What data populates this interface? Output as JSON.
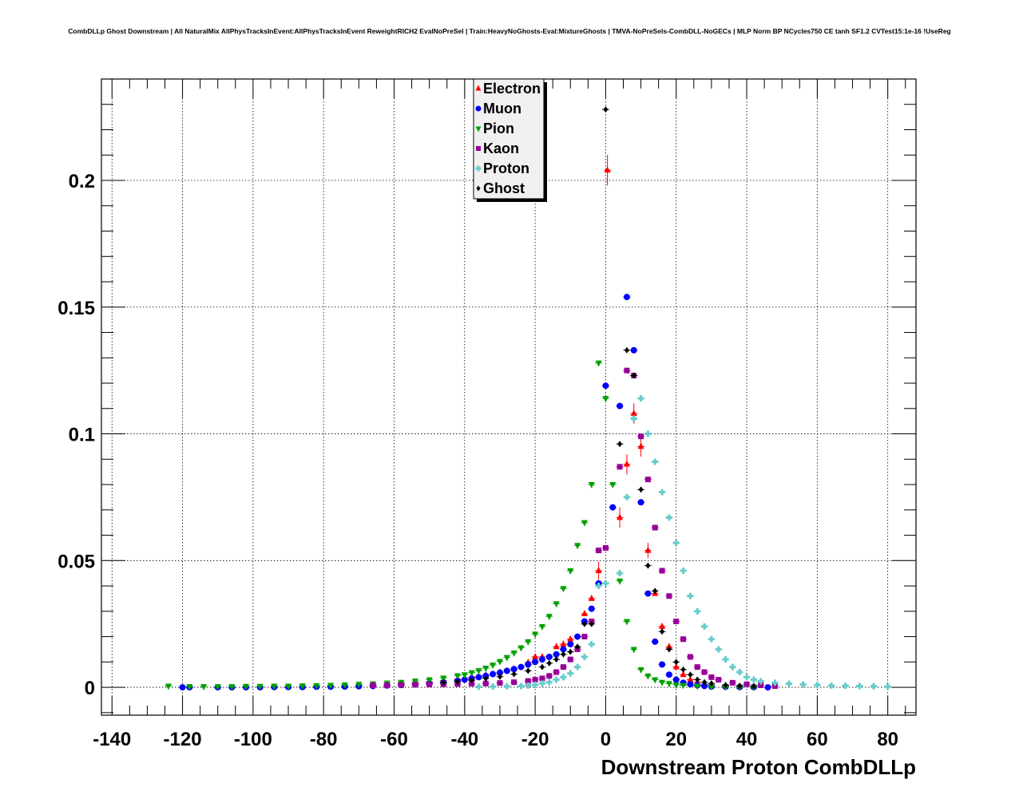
{
  "chart_data": {
    "type": "scatter",
    "title": "CombDLLp Ghost Downstream | All NaturalMix AllPhysTracksInEvent:AllPhysTracksInEvent ReweightRICH2 EvalNoPreSel | Train:HeavyNoGhosts-Eval:MixtureGhosts | TMVA-NoPreSels-CombDLL-NoGECs | MLP Norm BP NCycles750 CE tanh SF1.2 CVTest15:1e-16 !UseReg",
    "xlabel": "Downstream Proton CombDLLp",
    "ylabel": "",
    "xlim": [
      -143,
      88
    ],
    "ylim": [
      -0.011,
      0.24
    ],
    "xticks": [
      -140,
      -120,
      -100,
      -80,
      -60,
      -40,
      -20,
      0,
      20,
      40,
      60,
      80
    ],
    "xtick_labels": [
      "-140",
      "-120",
      "-100",
      "-80",
      "-60",
      "-40",
      "-20",
      "0",
      "20",
      "40",
      "60",
      "80"
    ],
    "yticks": [
      0,
      0.05,
      0.1,
      0.15,
      0.2
    ],
    "ytick_labels": [
      "0",
      "0.05",
      "0.1",
      "0.15",
      "0.2"
    ],
    "grid": true,
    "legend_position": "top-center",
    "series": [
      {
        "name": "Electron",
        "color": "#ff0000",
        "marker": "triangle-up",
        "points": [
          [
            -58,
            0.0015
          ],
          [
            -54,
            0.0018
          ],
          [
            -50,
            0.0021
          ],
          [
            -46,
            0.0026
          ],
          [
            -42,
            0.0032
          ],
          [
            -38,
            0.004
          ],
          [
            -34,
            0.0048
          ],
          [
            -30,
            0.0058
          ],
          [
            -26,
            0.0072
          ],
          [
            -22,
            0.0098
          ],
          [
            -20,
            0.012
          ],
          [
            -18,
            0.012
          ],
          [
            -14,
            0.016
          ],
          [
            -12,
            0.017
          ],
          [
            -10,
            0.019
          ],
          [
            -6,
            0.029
          ],
          [
            -4,
            0.035
          ],
          [
            -2,
            0.046
          ],
          [
            0.5,
            0.204
          ],
          [
            4,
            0.067
          ],
          [
            6,
            0.088
          ],
          [
            8,
            0.108
          ],
          [
            10,
            0.095
          ],
          [
            12,
            0.054
          ],
          [
            14,
            0.037
          ],
          [
            16,
            0.024
          ],
          [
            18,
            0.016
          ],
          [
            20,
            0.008
          ],
          [
            22,
            0.005
          ],
          [
            24,
            0.003
          ],
          [
            26,
            0.002
          ],
          [
            28,
            0.0012
          ],
          [
            30,
            0.0008
          ],
          [
            34,
            0.0005
          ],
          [
            38,
            0.0003
          ],
          [
            42,
            0.0002
          ]
        ],
        "errors": [
          [
            -2,
            0.0035
          ],
          [
            0.5,
            0.006
          ],
          [
            4,
            0.004
          ],
          [
            6,
            0.004
          ],
          [
            8,
            0.004
          ],
          [
            10,
            0.004
          ],
          [
            12,
            0.003
          ]
        ]
      },
      {
        "name": "Muon",
        "color": "#0000ff",
        "marker": "circle",
        "points": [
          [
            -120,
            0.0
          ],
          [
            -118,
            0.0
          ],
          [
            -110,
            0.0
          ],
          [
            -106,
            0.0
          ],
          [
            -102,
            0.0
          ],
          [
            -98,
            0.0
          ],
          [
            -94,
            0.0001
          ],
          [
            -90,
            0.0001
          ],
          [
            -86,
            0.0001
          ],
          [
            -82,
            0.0002
          ],
          [
            -78,
            0.0002
          ],
          [
            -74,
            0.0003
          ],
          [
            -70,
            0.0004
          ],
          [
            -66,
            0.0005
          ],
          [
            -62,
            0.0007
          ],
          [
            -58,
            0.0009
          ],
          [
            -54,
            0.0012
          ],
          [
            -50,
            0.0016
          ],
          [
            -46,
            0.002
          ],
          [
            -42,
            0.0026
          ],
          [
            -40,
            0.003
          ],
          [
            -38,
            0.0035
          ],
          [
            -36,
            0.004
          ],
          [
            -34,
            0.0045
          ],
          [
            -32,
            0.0052
          ],
          [
            -30,
            0.0058
          ],
          [
            -28,
            0.0065
          ],
          [
            -26,
            0.0072
          ],
          [
            -24,
            0.008
          ],
          [
            -22,
            0.009
          ],
          [
            -20,
            0.01
          ],
          [
            -18,
            0.011
          ],
          [
            -16,
            0.012
          ],
          [
            -14,
            0.013
          ],
          [
            -12,
            0.015
          ],
          [
            -10,
            0.017
          ],
          [
            -8,
            0.02
          ],
          [
            -6,
            0.026
          ],
          [
            -4,
            0.031
          ],
          [
            -2,
            0.041
          ],
          [
            0,
            0.119
          ],
          [
            2,
            0.071
          ],
          [
            4,
            0.111
          ],
          [
            6,
            0.154
          ],
          [
            8,
            0.133
          ],
          [
            10,
            0.073
          ],
          [
            12,
            0.037
          ],
          [
            14,
            0.018
          ],
          [
            16,
            0.009
          ],
          [
            18,
            0.005
          ],
          [
            20,
            0.003
          ],
          [
            22,
            0.0018
          ],
          [
            24,
            0.0012
          ],
          [
            26,
            0.0008
          ],
          [
            28,
            0.0005
          ],
          [
            30,
            0.0003
          ],
          [
            34,
            0.0002
          ],
          [
            38,
            0.0001
          ],
          [
            42,
            0.0001
          ],
          [
            46,
            0.0
          ]
        ]
      },
      {
        "name": "Pion",
        "color": "#00a000",
        "marker": "triangle-down",
        "points": [
          [
            -124,
            0.0005
          ],
          [
            -118,
            0.0003
          ],
          [
            -114,
            0.0003
          ],
          [
            -110,
            0.0003
          ],
          [
            -106,
            0.0003
          ],
          [
            -102,
            0.0004
          ],
          [
            -98,
            0.0004
          ],
          [
            -94,
            0.0005
          ],
          [
            -90,
            0.0005
          ],
          [
            -86,
            0.0006
          ],
          [
            -82,
            0.0007
          ],
          [
            -78,
            0.0008
          ],
          [
            -74,
            0.001
          ],
          [
            -70,
            0.0012
          ],
          [
            -66,
            0.0014
          ],
          [
            -62,
            0.0017
          ],
          [
            -58,
            0.002
          ],
          [
            -54,
            0.0025
          ],
          [
            -50,
            0.003
          ],
          [
            -46,
            0.0037
          ],
          [
            -42,
            0.0046
          ],
          [
            -40,
            0.005
          ],
          [
            -38,
            0.0058
          ],
          [
            -36,
            0.0066
          ],
          [
            -34,
            0.0076
          ],
          [
            -32,
            0.0088
          ],
          [
            -30,
            0.0102
          ],
          [
            -28,
            0.0118
          ],
          [
            -26,
            0.0136
          ],
          [
            -24,
            0.0156
          ],
          [
            -22,
            0.018
          ],
          [
            -20,
            0.021
          ],
          [
            -18,
            0.024
          ],
          [
            -16,
            0.028
          ],
          [
            -14,
            0.033
          ],
          [
            -12,
            0.039
          ],
          [
            -10,
            0.046
          ],
          [
            -8,
            0.056
          ],
          [
            -6,
            0.065
          ],
          [
            -4,
            0.08
          ],
          [
            -2,
            0.128
          ],
          [
            0,
            0.114
          ],
          [
            2,
            0.08
          ],
          [
            4,
            0.042
          ],
          [
            6,
            0.026
          ],
          [
            8,
            0.015
          ],
          [
            10,
            0.007
          ],
          [
            12,
            0.0045
          ],
          [
            14,
            0.003
          ],
          [
            16,
            0.002
          ],
          [
            18,
            0.0015
          ],
          [
            20,
            0.001
          ],
          [
            22,
            0.0008
          ],
          [
            26,
            0.0005
          ],
          [
            30,
            0.0003
          ],
          [
            34,
            0.0002
          ],
          [
            38,
            0.0001
          ],
          [
            42,
            0.0001
          ]
        ]
      },
      {
        "name": "Kaon",
        "color": "#990099",
        "marker": "square",
        "points": [
          [
            -66,
            0.0008
          ],
          [
            -62,
            0.0008
          ],
          [
            -58,
            0.0009
          ],
          [
            -54,
            0.001
          ],
          [
            -50,
            0.0011
          ],
          [
            -46,
            0.0012
          ],
          [
            -42,
            0.0013
          ],
          [
            -38,
            0.0014
          ],
          [
            -34,
            0.0015
          ],
          [
            -30,
            0.0017
          ],
          [
            -26,
            0.002
          ],
          [
            -22,
            0.0025
          ],
          [
            -20,
            0.003
          ],
          [
            -18,
            0.0035
          ],
          [
            -16,
            0.0045
          ],
          [
            -14,
            0.006
          ],
          [
            -12,
            0.008
          ],
          [
            -10,
            0.011
          ],
          [
            -8,
            0.015
          ],
          [
            -6,
            0.02
          ],
          [
            -4,
            0.026
          ],
          [
            -2,
            0.054
          ],
          [
            0,
            0.055
          ],
          [
            4,
            0.087
          ],
          [
            6,
            0.125
          ],
          [
            8,
            0.123
          ],
          [
            10,
            0.099
          ],
          [
            12,
            0.082
          ],
          [
            14,
            0.063
          ],
          [
            16,
            0.046
          ],
          [
            18,
            0.036
          ],
          [
            20,
            0.026
          ],
          [
            22,
            0.019
          ],
          [
            24,
            0.012
          ],
          [
            26,
            0.008
          ],
          [
            28,
            0.006
          ],
          [
            30,
            0.004
          ],
          [
            32,
            0.003
          ],
          [
            36,
            0.0018
          ],
          [
            40,
            0.0012
          ],
          [
            44,
            0.0008
          ],
          [
            48,
            0.0005
          ]
        ]
      },
      {
        "name": "Proton",
        "color": "#66cccc",
        "marker": "cross",
        "points": [
          [
            -36,
            0.0002
          ],
          [
            -32,
            0.0003
          ],
          [
            -28,
            0.0004
          ],
          [
            -24,
            0.0005
          ],
          [
            -22,
            0.0007
          ],
          [
            -20,
            0.001
          ],
          [
            -18,
            0.0015
          ],
          [
            -16,
            0.002
          ],
          [
            -14,
            0.003
          ],
          [
            -12,
            0.004
          ],
          [
            -10,
            0.0055
          ],
          [
            -8,
            0.008
          ],
          [
            -6,
            0.012
          ],
          [
            -4,
            0.017
          ],
          [
            -2,
            0.04
          ],
          [
            0,
            0.041
          ],
          [
            4,
            0.045
          ],
          [
            6,
            0.075
          ],
          [
            8,
            0.106
          ],
          [
            10,
            0.114
          ],
          [
            12,
            0.1
          ],
          [
            14,
            0.089
          ],
          [
            16,
            0.077
          ],
          [
            18,
            0.067
          ],
          [
            20,
            0.057
          ],
          [
            22,
            0.046
          ],
          [
            24,
            0.036
          ],
          [
            26,
            0.03
          ],
          [
            28,
            0.024
          ],
          [
            30,
            0.019
          ],
          [
            32,
            0.015
          ],
          [
            34,
            0.011
          ],
          [
            36,
            0.008
          ],
          [
            38,
            0.006
          ],
          [
            40,
            0.004
          ],
          [
            42,
            0.003
          ],
          [
            44,
            0.0024
          ],
          [
            48,
            0.0018
          ],
          [
            52,
            0.0014
          ],
          [
            56,
            0.0011
          ],
          [
            60,
            0.0009
          ],
          [
            64,
            0.0007
          ],
          [
            68,
            0.0006
          ],
          [
            72,
            0.0005
          ],
          [
            76,
            0.0004
          ],
          [
            80,
            0.0003
          ]
        ]
      },
      {
        "name": "Ghost",
        "color": "#000000",
        "marker": "diamond",
        "points": [
          [
            -46,
            0.0018
          ],
          [
            -42,
            0.0022
          ],
          [
            -38,
            0.0028
          ],
          [
            -34,
            0.0035
          ],
          [
            -30,
            0.0042
          ],
          [
            -26,
            0.0052
          ],
          [
            -22,
            0.0065
          ],
          [
            -18,
            0.008
          ],
          [
            -16,
            0.0095
          ],
          [
            -14,
            0.011
          ],
          [
            -12,
            0.013
          ],
          [
            -10,
            0.014
          ],
          [
            -8,
            0.016
          ],
          [
            -6,
            0.025
          ],
          [
            -4,
            0.025
          ],
          [
            0,
            0.228
          ],
          [
            4,
            0.096
          ],
          [
            6,
            0.133
          ],
          [
            8,
            0.123
          ],
          [
            10,
            0.078
          ],
          [
            12,
            0.048
          ],
          [
            14,
            0.038
          ],
          [
            16,
            0.022
          ],
          [
            18,
            0.015
          ],
          [
            20,
            0.01
          ],
          [
            22,
            0.007
          ],
          [
            24,
            0.005
          ],
          [
            26,
            0.003
          ],
          [
            28,
            0.002
          ],
          [
            30,
            0.0015
          ],
          [
            34,
            0.0009
          ],
          [
            38,
            0.0006
          ],
          [
            42,
            0.0004
          ]
        ]
      }
    ]
  }
}
